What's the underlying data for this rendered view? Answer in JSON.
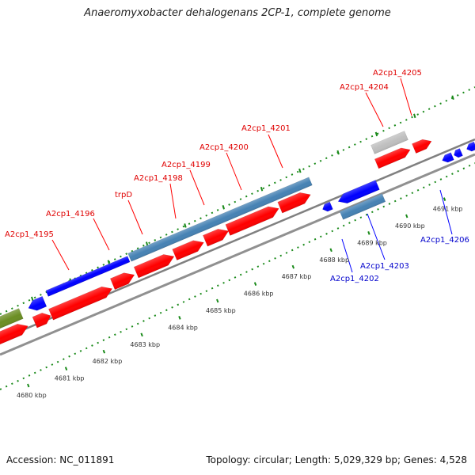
{
  "title": "Anaeromyxobacter dehalogenans 2CP-1, complete genome",
  "footer": {
    "accession": "Accession: NC_011891",
    "summary": "Topology: circular; Length: 5,029,329 bp; Genes: 4,528"
  },
  "colors": {
    "forward_gene": "#ff0000",
    "reverse_gene": "#0000ff",
    "cds_bar": "#4682b4",
    "misc_gene": "#bfbfbf",
    "other_gene": "#6b8e23",
    "tick": "#1a8a1a",
    "backbone": "#888888"
  },
  "ticks": [
    {
      "label": "4680 kbp"
    },
    {
      "label": "4681 kbp"
    },
    {
      "label": "4682 kbp"
    },
    {
      "label": "4683 kbp"
    },
    {
      "label": "4684 kbp"
    },
    {
      "label": "4685 kbp"
    },
    {
      "label": "4686 kbp"
    },
    {
      "label": "4687 kbp"
    },
    {
      "label": "4688 kbp"
    },
    {
      "label": "4689 kbp"
    },
    {
      "label": "4690 kbp"
    },
    {
      "label": "4691 kbp"
    }
  ],
  "labels_forward": [
    {
      "name": "A2cp1_4195"
    },
    {
      "name": "A2cp1_4196"
    },
    {
      "name": "trpD"
    },
    {
      "name": "A2cp1_4198"
    },
    {
      "name": "A2cp1_4199"
    },
    {
      "name": "A2cp1_4200"
    },
    {
      "name": "A2cp1_4201"
    },
    {
      "name": "A2cp1_4204"
    },
    {
      "name": "A2cp1_4205"
    }
  ],
  "labels_reverse": [
    {
      "name": "A2cp1_4202"
    },
    {
      "name": "A2cp1_4203"
    },
    {
      "name": "A2cp1_4206"
    }
  ]
}
